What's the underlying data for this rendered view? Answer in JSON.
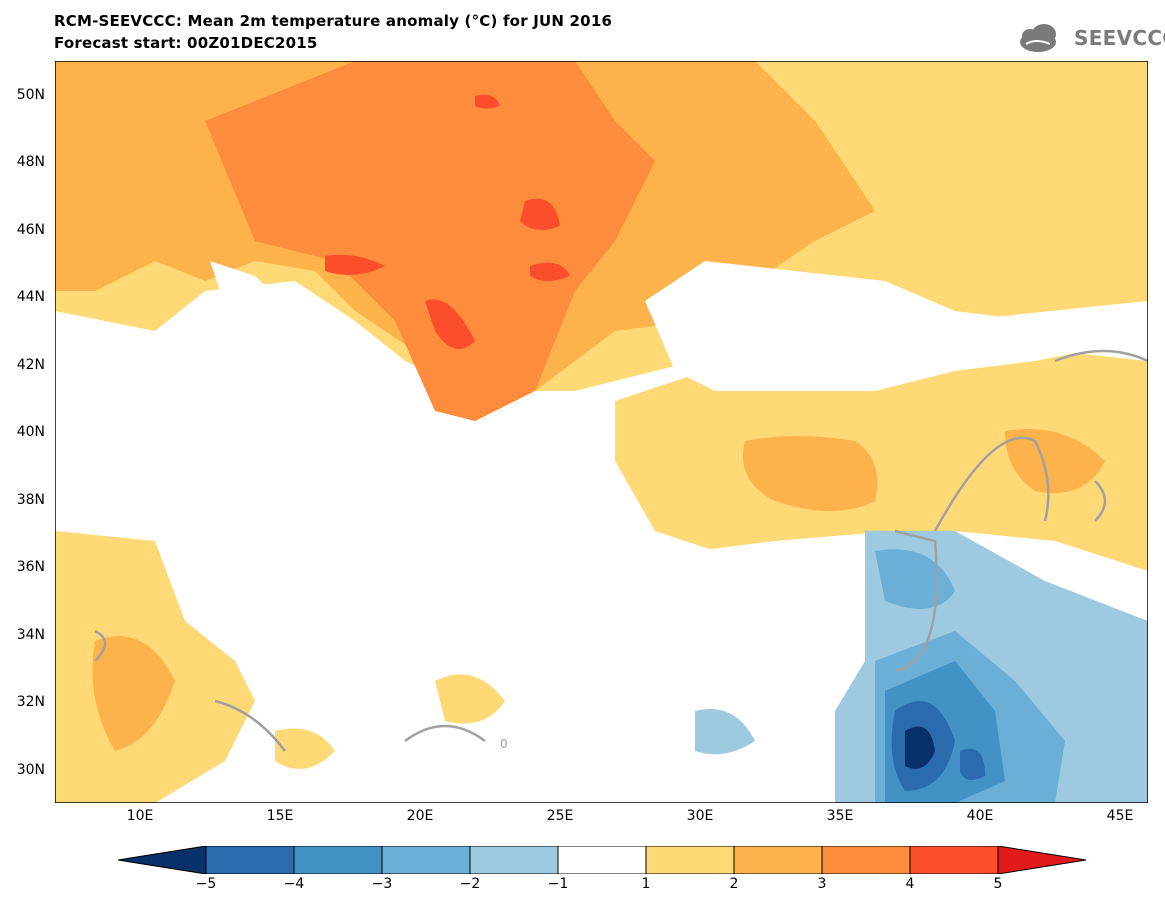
{
  "header": {
    "title_line1": "RCM-SEEVCCC: Mean 2m temperature anomaly (°C) for JUN 2016",
    "title_line2": "Forecast start: 00Z01DEC2015",
    "logo_text": "SEEVCCC"
  },
  "map": {
    "region": "Balkans, Eastern Mediterranean, Black Sea, Anatolia, Middle East",
    "lat_labels": [
      "50N",
      "48N",
      "46N",
      "44N",
      "42N",
      "40N",
      "38N",
      "36N",
      "34N",
      "32N",
      "30N"
    ],
    "lon_labels": [
      "10E",
      "15E",
      "20E",
      "25E",
      "30E",
      "35E",
      "40E",
      "45E"
    ],
    "field": "2m temperature anomaly (°C)",
    "contour_zero_label": "0",
    "ocean_color": "#ffffff"
  },
  "colorbar": {
    "labels": [
      "−5",
      "−4",
      "−3",
      "−2",
      "−1",
      "1",
      "2",
      "3",
      "4",
      "5"
    ],
    "colors": [
      "#08306b",
      "#2a6aad",
      "#4292c6",
      "#6baed6",
      "#9ecae1",
      "#ffffff",
      "#fed976",
      "#feb24c",
      "#fd8d3c",
      "#fc4e2a",
      "#e31a1c"
    ]
  }
}
